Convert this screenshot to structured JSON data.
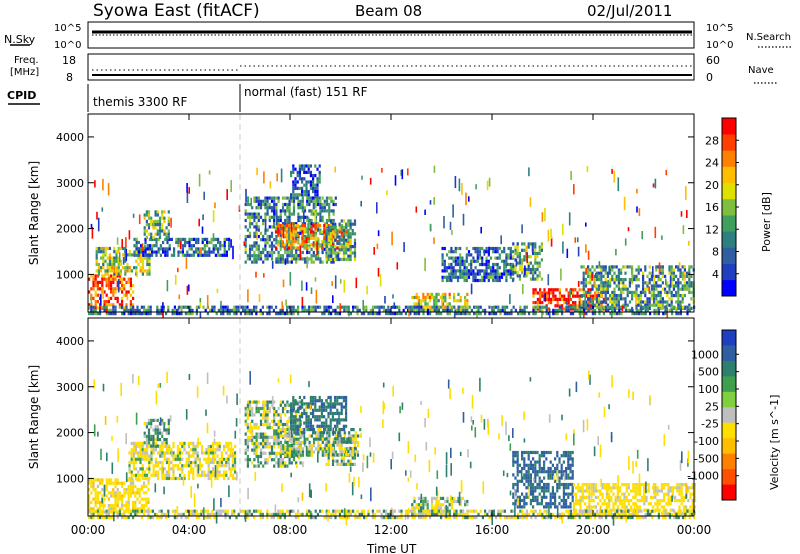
{
  "header": {
    "station": "Syowa East (fitACF)",
    "beam": "Beam 08",
    "date": "02/Jul/2011"
  },
  "noise_panel": {
    "left_label": "N.Sky",
    "right_label": "N.Search",
    "left_ticks": [
      "10^5",
      "10^0"
    ],
    "right_ticks": [
      "10^5",
      "10^0"
    ]
  },
  "freq_panel": {
    "left_label_1": "Freq.",
    "left_label_2": "[MHz]",
    "left_ticks": [
      "18",
      "8"
    ],
    "right_label": "Nave",
    "right_ticks": [
      "60",
      "0"
    ]
  },
  "cpid_panel": {
    "label": "CPID",
    "modes": [
      {
        "name": "themis 3300 RF",
        "start_hour": 0
      },
      {
        "name": "normal (fast) 151 RF",
        "start_hour": 6
      }
    ]
  },
  "x_axis": {
    "label": "Time UT",
    "range_hours": [
      0,
      24
    ],
    "ticks": [
      "00:00",
      "04:00",
      "08:00",
      "12:00",
      "16:00",
      "20:00",
      "00:00"
    ]
  },
  "y_axis": {
    "label": "Slant Range [km]",
    "range_km": [
      180,
      4500
    ],
    "ticks": [
      "1000",
      "2000",
      "3000",
      "4000"
    ]
  },
  "power_colorbar": {
    "title": "Power [dB]",
    "range": [
      0,
      32
    ],
    "ticks": [
      "4",
      "8",
      "12",
      "16",
      "20",
      "24",
      "28"
    ],
    "colors": [
      "#0000ff",
      "#1f3fbf",
      "#2f5fa0",
      "#2f7f7f",
      "#3f9f5f",
      "#7fbf3f",
      "#dfdf00",
      "#ffbf00",
      "#ff7f00",
      "#ff3f00",
      "#ff0000"
    ]
  },
  "velocity_colorbar": {
    "title": "Velocity [m s^-1]",
    "ticks": [
      "1000",
      "500",
      "100",
      "25",
      "-25",
      "-100",
      "-500",
      "-1000"
    ],
    "colors": [
      "#1f3fbf",
      "#2f5fa0",
      "#2f7f6f",
      "#3f9f4f",
      "#7fcf3f",
      "#bfbfbf",
      "#ffdf00",
      "#ffbf00",
      "#ff7f00",
      "#ff4f00",
      "#ff0000"
    ]
  },
  "chart_data": {
    "type": "heatmap",
    "x_unit": "hours UT",
    "y_unit": "slant range km",
    "power_regions": [
      {
        "t": [
          0.0,
          1.8
        ],
        "r": [
          300,
          1000
        ],
        "level": 0.85
      },
      {
        "t": [
          0.3,
          2.4
        ],
        "r": [
          1000,
          1600
        ],
        "level": 0.5
      },
      {
        "t": [
          1.8,
          5.6
        ],
        "r": [
          1400,
          1800
        ],
        "level": 0.25
      },
      {
        "t": [
          2.2,
          3.2
        ],
        "r": [
          1800,
          2400
        ],
        "level": 0.45
      },
      {
        "t": [
          6.2,
          9.8
        ],
        "r": [
          1300,
          2700
        ],
        "level": 0.3
      },
      {
        "t": [
          7.4,
          10.4
        ],
        "r": [
          1600,
          2100
        ],
        "level": 0.7
      },
      {
        "t": [
          8.0,
          9.2
        ],
        "r": [
          2700,
          3400
        ],
        "level": 0.2
      },
      {
        "t": [
          9.4,
          10.6
        ],
        "r": [
          1300,
          2200
        ],
        "level": 0.35
      },
      {
        "t": [
          12.8,
          15.0
        ],
        "r": [
          250,
          600
        ],
        "level": 0.6
      },
      {
        "t": [
          14.0,
          16.8
        ],
        "r": [
          900,
          1600
        ],
        "level": 0.25
      },
      {
        "t": [
          16.8,
          18.0
        ],
        "r": [
          900,
          1700
        ],
        "level": 0.4
      },
      {
        "t": [
          17.6,
          20.5
        ],
        "r": [
          250,
          700
        ],
        "level": 0.95
      },
      {
        "t": [
          19.5,
          24.0
        ],
        "r": [
          250,
          1200
        ],
        "level": 0.35
      },
      {
        "t": [
          0.0,
          24.0
        ],
        "r": [
          180,
          320
        ],
        "level": 0.3
      }
    ],
    "velocity_regions": [
      {
        "t": [
          0.0,
          2.4
        ],
        "r": [
          300,
          1000
        ],
        "v": -300
      },
      {
        "t": [
          1.6,
          5.8
        ],
        "r": [
          1000,
          1800
        ],
        "v": -150
      },
      {
        "t": [
          2.2,
          3.2
        ],
        "r": [
          1700,
          2300
        ],
        "v": 80
      },
      {
        "t": [
          6.2,
          8.4
        ],
        "r": [
          1300,
          2700
        ],
        "v": 30
      },
      {
        "t": [
          7.6,
          10.8
        ],
        "r": [
          1500,
          2100
        ],
        "v": 0
      },
      {
        "t": [
          8.0,
          10.2
        ],
        "r": [
          2000,
          2800
        ],
        "v": 400
      },
      {
        "t": [
          9.4,
          10.6
        ],
        "r": [
          1300,
          1900
        ],
        "v": 0
      },
      {
        "t": [
          12.8,
          15.0
        ],
        "r": [
          250,
          600
        ],
        "v": -60
      },
      {
        "t": [
          16.8,
          19.2
        ],
        "r": [
          400,
          1600
        ],
        "v": 600
      },
      {
        "t": [
          19.2,
          24.0
        ],
        "r": [
          250,
          900
        ],
        "v": -250
      },
      {
        "t": [
          0.0,
          24.0
        ],
        "r": [
          180,
          320
        ],
        "v": -60
      }
    ]
  }
}
